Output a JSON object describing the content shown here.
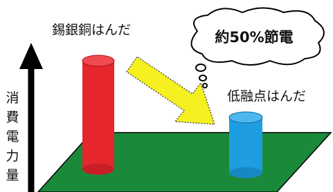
{
  "labels": {
    "high_temp_solder": "錫銀銅はんだ",
    "low_temp_solder": "低融点はんだ",
    "saving": "約50%節電",
    "y_axis": "消費電力量"
  }
}
